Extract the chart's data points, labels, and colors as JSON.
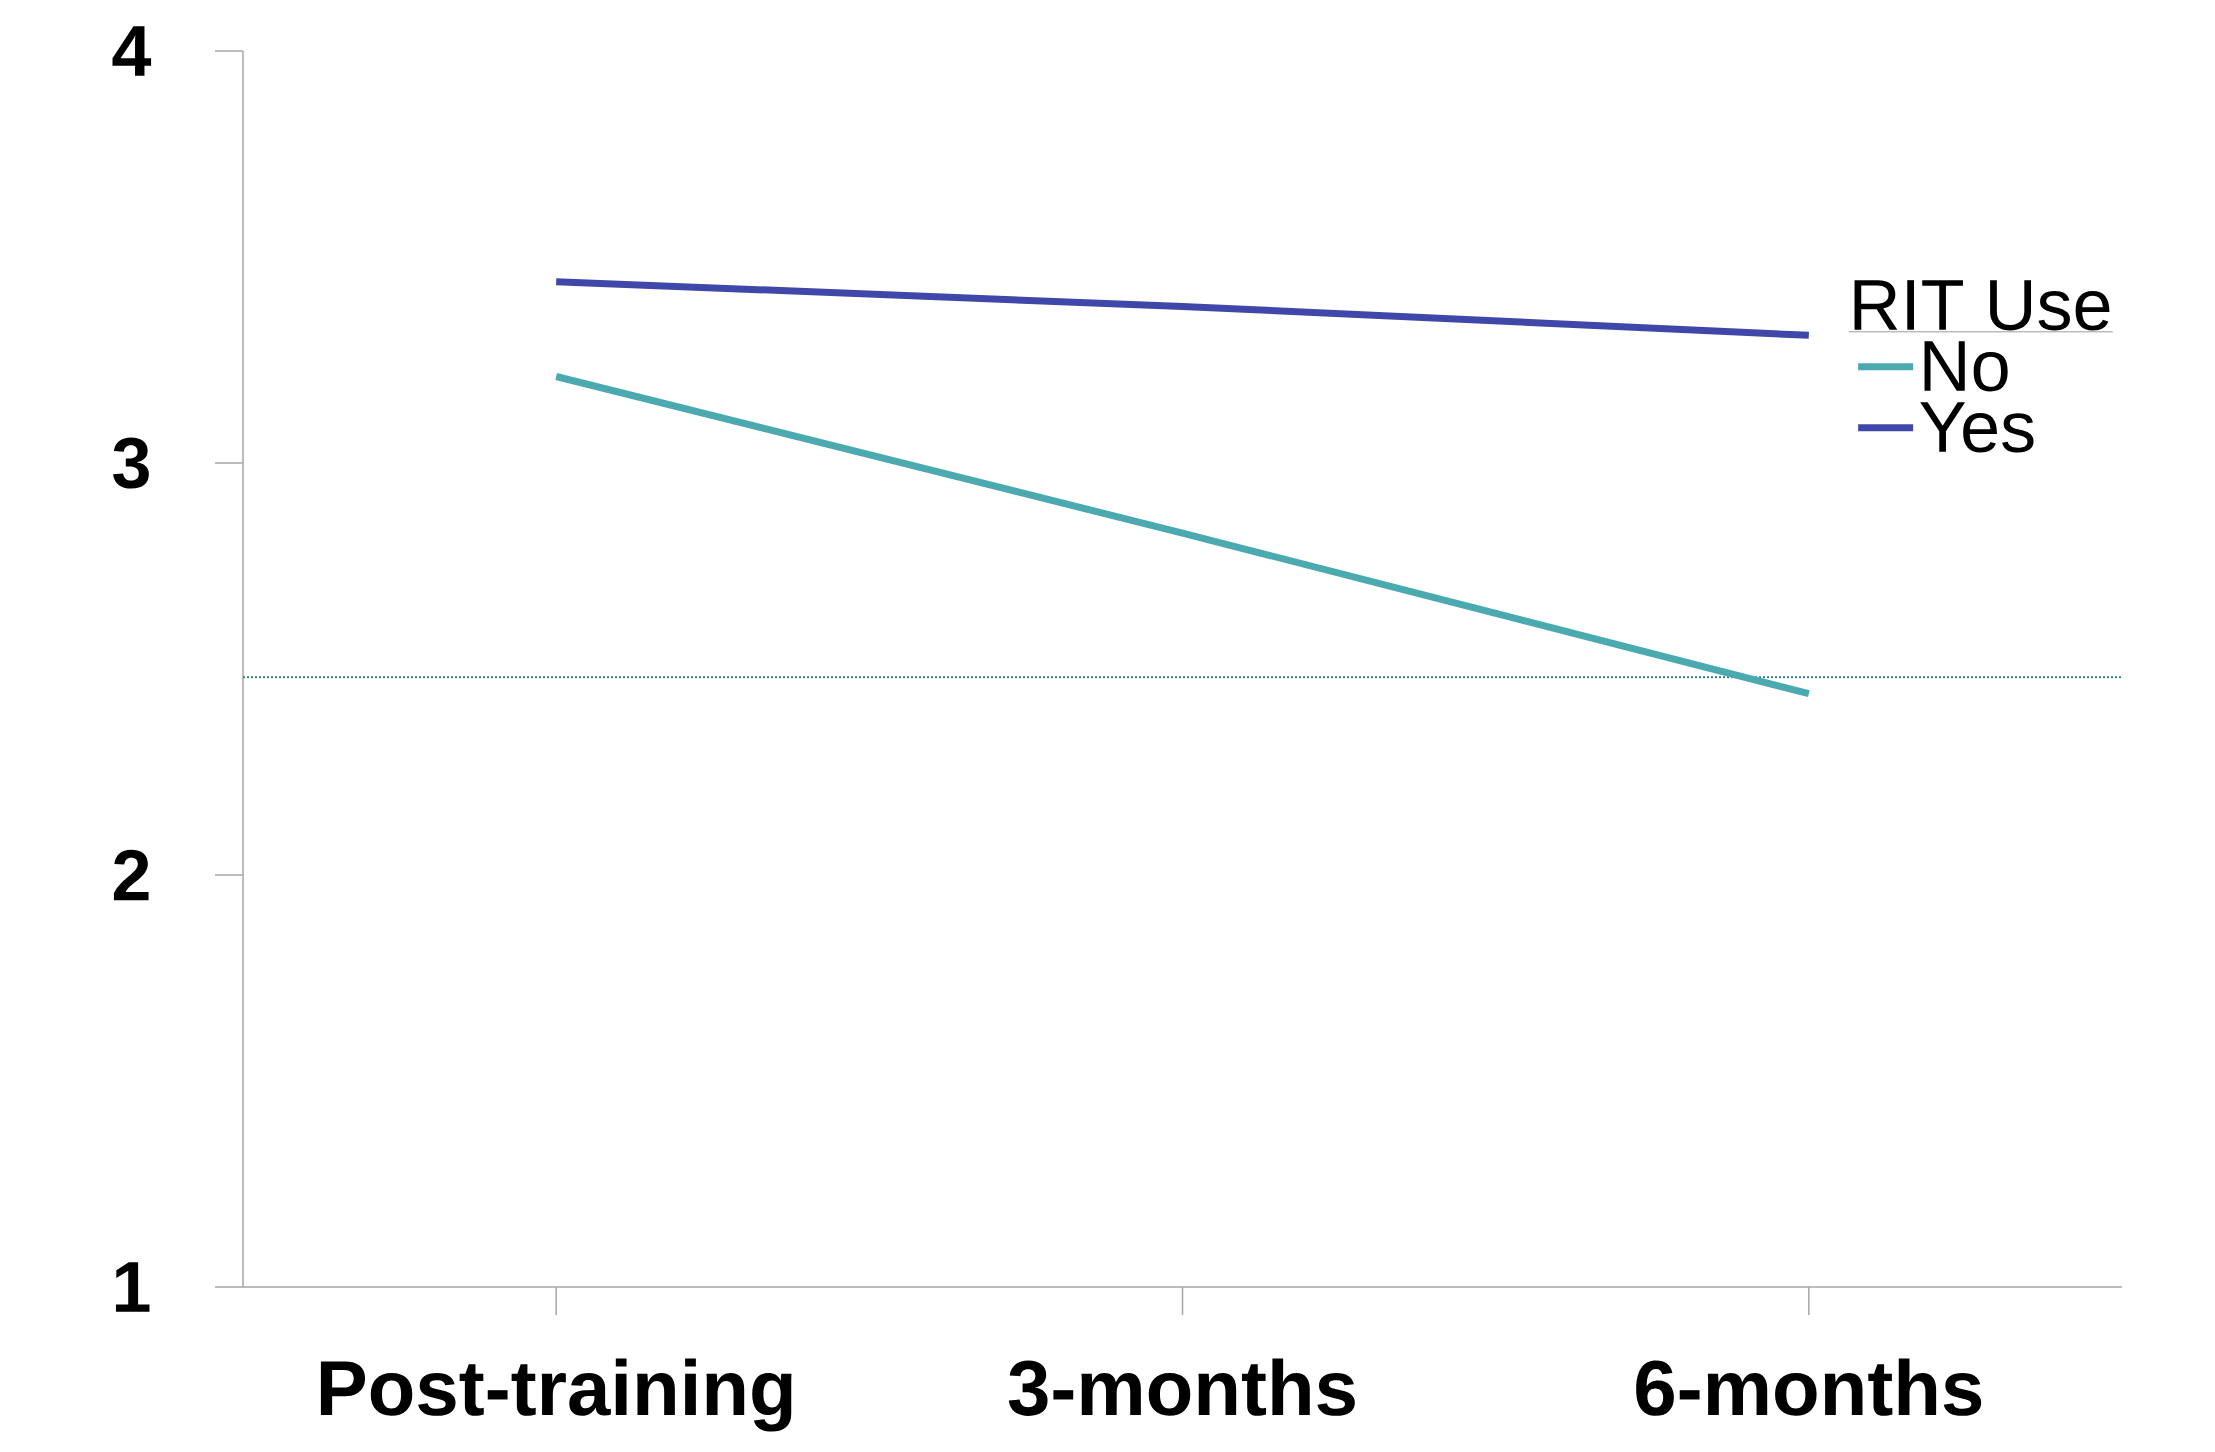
{
  "chart_data": {
    "type": "line",
    "categories": [
      "Post-training",
      "3-months",
      "6-months"
    ],
    "series": [
      {
        "name": "No",
        "color": "#4ba9b0",
        "values": [
          3.21,
          2.83,
          2.44
        ]
      },
      {
        "name": "Yes",
        "color": "#3f48a8",
        "values": [
          3.44,
          3.38,
          3.31
        ]
      }
    ],
    "ylim": [
      1,
      4
    ],
    "yticks": [
      1,
      2,
      3,
      4
    ],
    "legend_title": "RIT Use",
    "legend": "right",
    "grid": false,
    "marker": "none",
    "line_style": "solid",
    "ref_lines": [
      {
        "axis": "y",
        "value": 2.48,
        "color": "#2e7d7d",
        "line_style": "dotted"
      }
    ]
  }
}
